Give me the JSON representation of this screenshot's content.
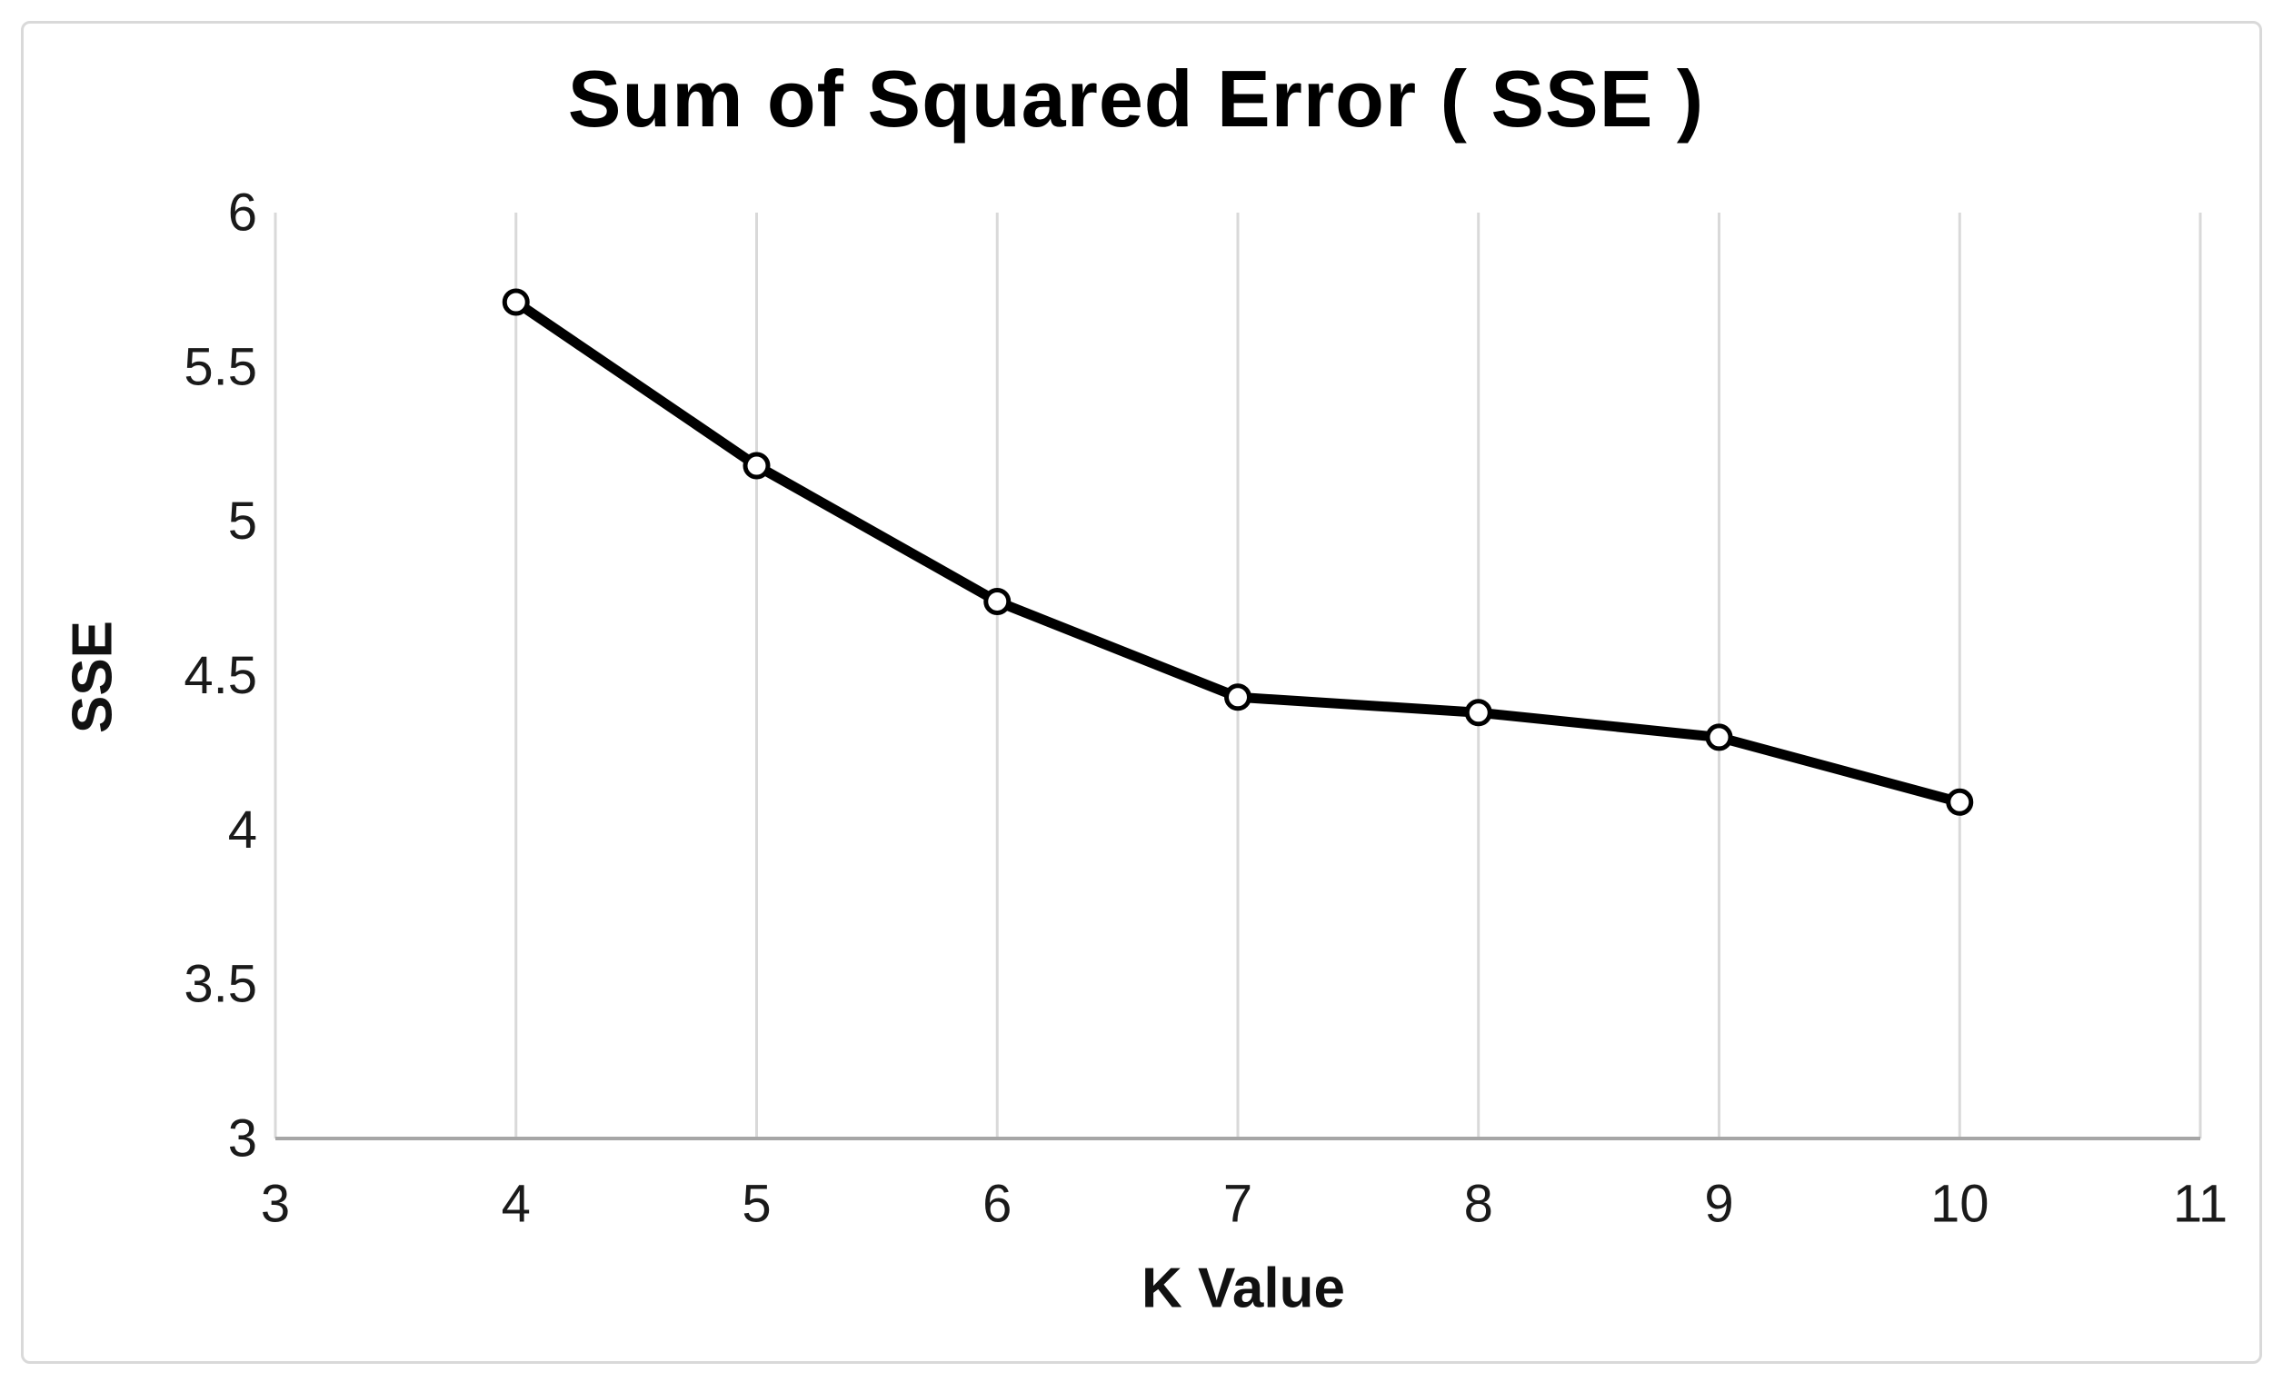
{
  "frame": {
    "border_color": "#d9d9d9",
    "background_color": "#ffffff"
  },
  "chart_data": {
    "type": "line",
    "title": "Sum of Squared Error ( SSE )",
    "xlabel": "K Value",
    "ylabel": "SSE",
    "series": [
      {
        "name": "SSE",
        "x": [
          4,
          5,
          6,
          7,
          8,
          9,
          10
        ],
        "values": [
          5.71,
          5.18,
          4.74,
          4.43,
          4.38,
          4.3,
          4.09
        ]
      }
    ],
    "xlim": [
      3,
      11
    ],
    "ylim": [
      3,
      6
    ],
    "x_ticks": [
      {
        "v": 3,
        "label": "3"
      },
      {
        "v": 4,
        "label": "4"
      },
      {
        "v": 5,
        "label": "5"
      },
      {
        "v": 6,
        "label": "6"
      },
      {
        "v": 7,
        "label": "7"
      },
      {
        "v": 8,
        "label": "8"
      },
      {
        "v": 9,
        "label": "9"
      },
      {
        "v": 10,
        "label": "10"
      },
      {
        "v": 11,
        "label": "11"
      }
    ],
    "y_ticks": [
      {
        "v": 6,
        "label": "6"
      },
      {
        "v": 5.5,
        "label": "5.5"
      },
      {
        "v": 5,
        "label": "5"
      },
      {
        "v": 4.5,
        "label": "4.5"
      },
      {
        "v": 4,
        "label": "4"
      },
      {
        "v": 3.5,
        "label": "3.5"
      },
      {
        "v": 3,
        "label": "3"
      }
    ],
    "grid": "vertical-only",
    "legend": "none",
    "colors": {
      "line": "#000000",
      "marker_fill": "#ffffff",
      "marker_stroke": "#000000",
      "gridline": "#d9d9d9",
      "axis": "#a6a6a6",
      "text": "#1a1a1a"
    }
  }
}
